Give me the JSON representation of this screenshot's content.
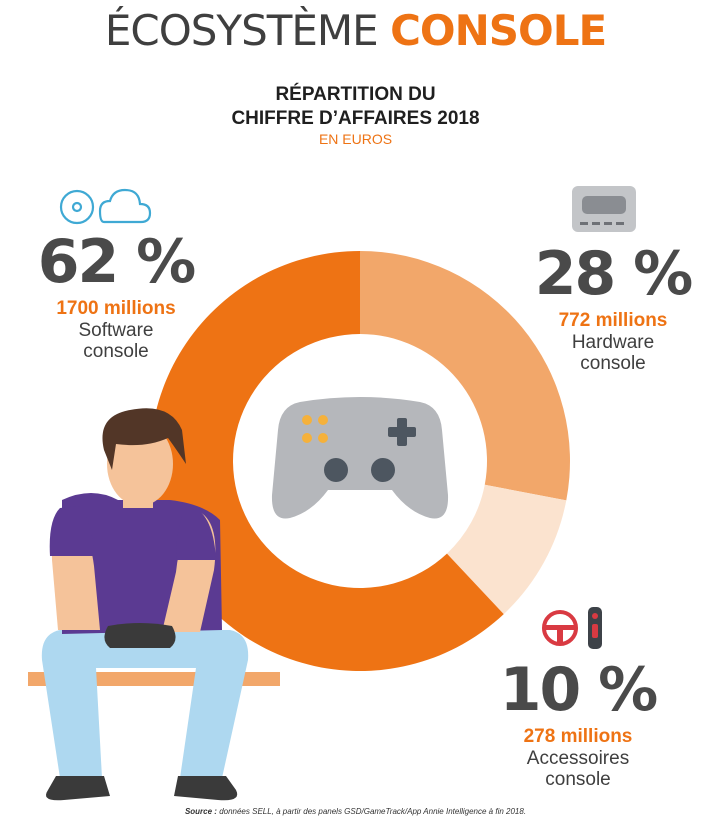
{
  "header": {
    "title_part1": "ÉCOSYSTÈME",
    "title_part2": "CONSOLE"
  },
  "chart_title_line1": "RÉPARTITION DU",
  "chart_title_line2": "CHIFFRE D’AFFAIRES 2018",
  "chart_subtitle": "EN EUROS",
  "chart_data": {
    "type": "pie",
    "style": "donut",
    "title": "RÉPARTITION DU CHIFFRE D’AFFAIRES 2018",
    "subtitle": "EN EUROS",
    "slices": [
      {
        "key": "hardware",
        "percent": 28,
        "percent_label": "28 %",
        "amount": "772 millions",
        "label_line1": "Hardware",
        "label_line2": "console",
        "color": "#f2a76a"
      },
      {
        "key": "accessoires",
        "percent": 10,
        "percent_label": "10 %",
        "amount": "278 millions",
        "label_line1": "Accessoires",
        "label_line2": "console",
        "color": "#fbe3cf"
      },
      {
        "key": "software",
        "percent": 62,
        "percent_label": "62 %",
        "amount": "1700 millions",
        "label_line1": "Software",
        "label_line2": "console",
        "color": "#ee7314"
      }
    ]
  },
  "source": {
    "prefix": "Source :",
    "text": "données SELL, à partir des panels GSD/GameTrack/App Annie Intelligence à fin 2018."
  },
  "colors": {
    "accent": "#ee7314",
    "dark_text": "#4a4a4a",
    "controller": "#b5b7bb"
  }
}
